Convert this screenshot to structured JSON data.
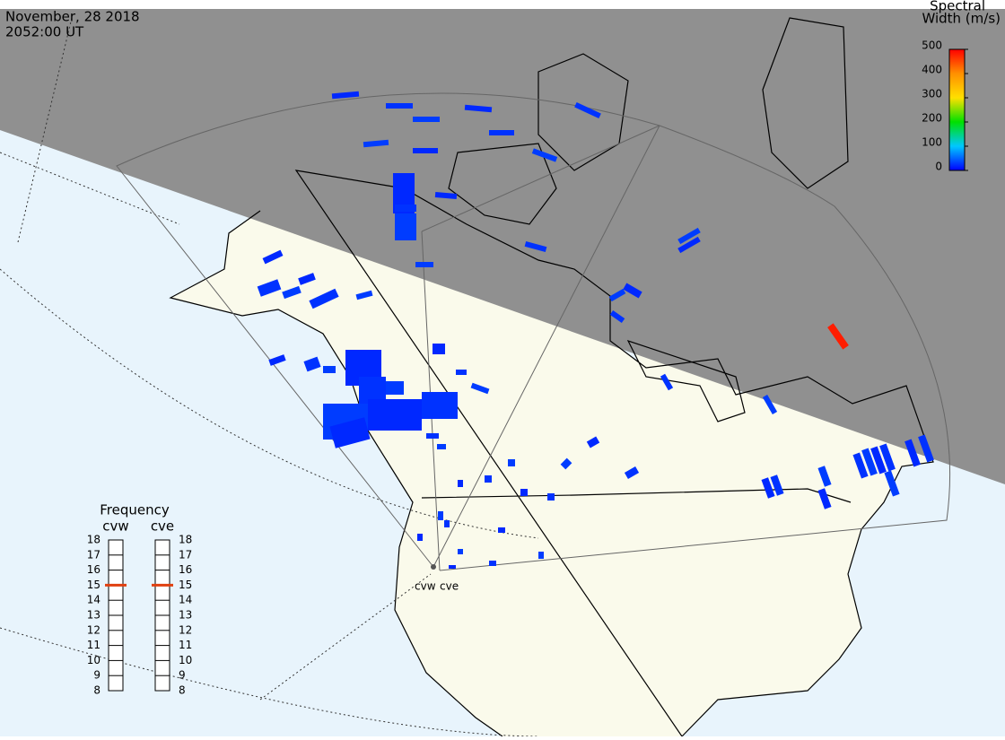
{
  "header": {
    "date": "November, 28 2018",
    "time": "2052:00 UT"
  },
  "colorbar": {
    "title_lines": [
      "Spectral",
      "Width (m/s)"
    ],
    "lim": [
      0,
      500
    ],
    "ticks": [
      500,
      400,
      300,
      200,
      100,
      0
    ]
  },
  "frequency": {
    "title": "Frequency",
    "lim": [
      8,
      18
    ],
    "ticks": [
      18,
      17,
      16,
      15,
      14,
      13,
      12,
      11,
      10,
      9,
      8
    ],
    "radars": [
      {
        "name": "cvw",
        "value": 15
      },
      {
        "name": "cve",
        "value": 15
      }
    ]
  },
  "site_labels": [
    "cvw",
    "cve"
  ],
  "echoes": {
    "widths": [
      20,
      25,
      30,
      20,
      25,
      30,
      20,
      25,
      30,
      20,
      25,
      30,
      20,
      25,
      30,
      20,
      25,
      30,
      20,
      25,
      30,
      20,
      25,
      30,
      20,
      25,
      30,
      20,
      25,
      30,
      20,
      25,
      30,
      20,
      25,
      30,
      20,
      25,
      30,
      20,
      25,
      30,
      20,
      25,
      30,
      20,
      25,
      30,
      20,
      25,
      30,
      20,
      25,
      30,
      20,
      25,
      30,
      20,
      25,
      30,
      20,
      25,
      30,
      20,
      25,
      30,
      20,
      25,
      30,
      20,
      480
    ]
  }
}
